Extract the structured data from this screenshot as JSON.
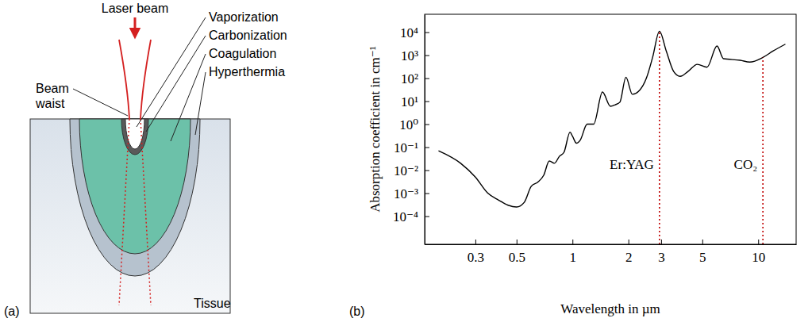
{
  "diagram": {
    "panel_label": "(a)",
    "beam_label": "Laser beam",
    "zone_labels": [
      "Vaporization",
      "Carbonization",
      "Coagulation",
      "Hyperthermia"
    ],
    "waist_label": "Beam waist",
    "tissue_label": "Tissue"
  },
  "chart_data": {
    "type": "line",
    "panel_label": "(b)",
    "x_label": "Wavelength in µm",
    "y_label": "Absorption coefficient in cm⁻¹",
    "log": true,
    "grid": false,
    "x": [
      0.19,
      0.25,
      0.3,
      0.35,
      0.4,
      0.45,
      0.5,
      0.55,
      0.6,
      0.65,
      0.7,
      0.75,
      0.8,
      0.85,
      0.9,
      0.97,
      1.0,
      1.05,
      1.1,
      1.2,
      1.3,
      1.45,
      1.6,
      1.7,
      1.8,
      1.94,
      2.1,
      2.3,
      2.5,
      2.7,
      2.94,
      3.2,
      3.5,
      3.8,
      4.2,
      4.7,
      5.3,
      6.0,
      6.5,
      8,
      9,
      10.6,
      12,
      14
    ],
    "series": [
      {
        "color": "#000000",
        "values": [
          0.07,
          0.02,
          0.005,
          0.001,
          0.0005,
          0.0003,
          0.00025,
          0.0004,
          0.002,
          0.003,
          0.006,
          0.025,
          0.02,
          0.04,
          0.06,
          0.45,
          0.3,
          0.15,
          0.2,
          1.0,
          1.0,
          25,
          6,
          7,
          9,
          110,
          20,
          30,
          100,
          800,
          11000,
          1500,
          200,
          120,
          200,
          400,
          300,
          2500,
          700,
          600,
          500,
          800,
          1500,
          3000
        ]
      }
    ],
    "xlim": [
      0.16,
      16
    ],
    "xticks": [
      0.3,
      0.5,
      1,
      2,
      3,
      5,
      10
    ],
    "ylim": [
      6e-06,
      60000
    ],
    "yticks": [
      {
        "value": 0.0001,
        "label": "10⁻⁴"
      },
      {
        "value": 0.001,
        "label": "10⁻³"
      },
      {
        "value": 0.01,
        "label": "10⁻²"
      },
      {
        "value": 0.1,
        "label": "10⁻¹"
      },
      {
        "value": 1,
        "label": "10⁰"
      },
      {
        "value": 10,
        "label": "10¹"
      },
      {
        "value": 100,
        "label": "10²"
      },
      {
        "value": 1000,
        "label": "10³"
      },
      {
        "value": 10000,
        "label": "10⁴"
      }
    ],
    "annotations": [
      {
        "text": "Er:YAG",
        "x": 2.94,
        "y": 11000
      },
      {
        "text": "CO₂",
        "x": 10.6,
        "y": 800
      }
    ]
  }
}
